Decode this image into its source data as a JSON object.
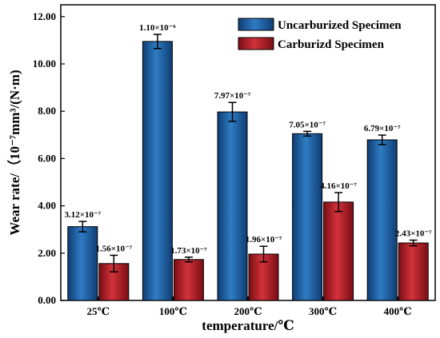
{
  "chart_data": {
    "type": "bar",
    "title": "",
    "xlabel": "temperature/℃",
    "ylabel": "Wear rate/（10⁻⁷mm³/(N·m)",
    "ylim": [
      0,
      12.5
    ],
    "yticks": [
      "0.00",
      "2.00",
      "4.00",
      "6.00",
      "8.00",
      "10.00",
      "12.00"
    ],
    "categories": [
      "25℃",
      "100℃",
      "200℃",
      "300℃",
      "400℃"
    ],
    "legend_position": "top-right",
    "grid": false,
    "series": [
      {
        "name": "Uncarburized Specimen",
        "color": "#1f5f9e",
        "values": [
          3.12,
          10.95,
          7.97,
          7.05,
          6.79
        ],
        "errors": [
          0.22,
          0.3,
          0.4,
          0.1,
          0.2
        ],
        "data_labels": [
          "3.12×10⁻⁷",
          "1.10×10⁻⁶",
          "7.97×10⁻⁷",
          "7.05×10⁻⁷",
          "6.79×10⁻⁷"
        ]
      },
      {
        "name": "Carburizd Specimen",
        "color": "#b01c24",
        "values": [
          1.56,
          1.73,
          1.96,
          4.16,
          2.43
        ],
        "errors": [
          0.35,
          0.1,
          0.33,
          0.4,
          0.12
        ],
        "data_labels": [
          "1.56×10⁻⁷",
          "1.73×10⁻⁷",
          "1.96×10⁻⁷",
          "4.16×10⁻⁷",
          "2.43×10⁻⁷"
        ]
      }
    ]
  }
}
